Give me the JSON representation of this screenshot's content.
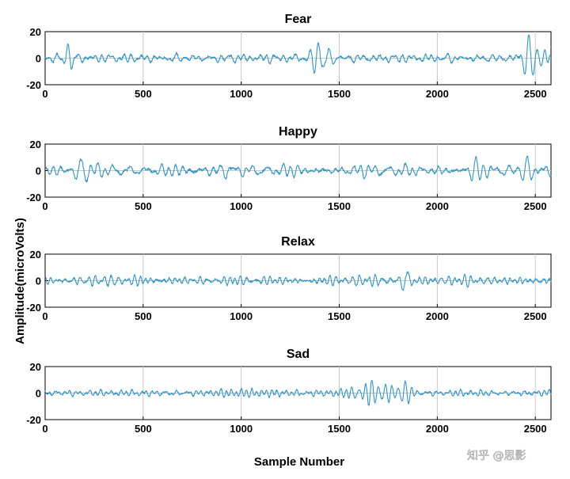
{
  "chart_data": {
    "type": "line",
    "xlabel": "Sample Number",
    "ylabel": "Amplitude(microVolts)",
    "xlim": [
      0,
      2580
    ],
    "ylim": [
      -20,
      20
    ],
    "xticks": [
      0,
      500,
      1000,
      1500,
      2000,
      2500
    ],
    "yticks": [
      -20,
      0,
      20
    ],
    "grid": true,
    "line_color": "#2f95c8",
    "panels": [
      {
        "title": "Fear",
        "base_amp": 2.5,
        "bursts": [
          {
            "center": 120,
            "width": 25,
            "amp": 9
          },
          {
            "center": 1400,
            "width": 55,
            "amp": 14
          },
          {
            "center": 2460,
            "width": 50,
            "amp": 17
          },
          {
            "center": 2560,
            "width": 25,
            "amp": 9
          }
        ]
      },
      {
        "title": "Happy",
        "base_amp": 3,
        "bursts": [
          {
            "center": 180,
            "width": 55,
            "amp": 13
          },
          {
            "center": 620,
            "width": 40,
            "amp": 5
          },
          {
            "center": 920,
            "width": 25,
            "amp": 12
          },
          {
            "center": 2200,
            "width": 60,
            "amp": 8
          },
          {
            "center": 2450,
            "width": 70,
            "amp": 7
          }
        ]
      },
      {
        "title": "Relax",
        "base_amp": 2.5,
        "bursts": [
          {
            "center": 1830,
            "width": 40,
            "amp": 8
          }
        ]
      },
      {
        "title": "Sad",
        "base_amp": 2,
        "bursts": [
          {
            "center": 1650,
            "width": 120,
            "amp": 10
          },
          {
            "center": 1840,
            "width": 40,
            "amp": 7
          }
        ]
      }
    ]
  },
  "watermark": "知乎 @思影"
}
